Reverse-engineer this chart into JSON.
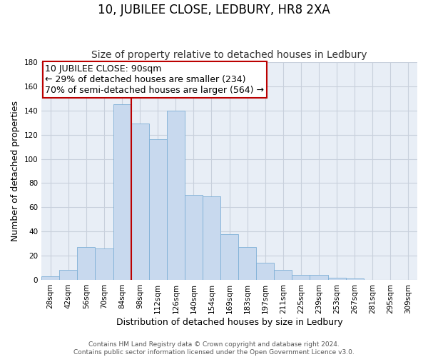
{
  "title": "10, JUBILEE CLOSE, LEDBURY, HR8 2XA",
  "subtitle": "Size of property relative to detached houses in Ledbury",
  "xlabel": "Distribution of detached houses by size in Ledbury",
  "ylabel": "Number of detached properties",
  "categories": [
    "28sqm",
    "42sqm",
    "56sqm",
    "70sqm",
    "84sqm",
    "98sqm",
    "112sqm",
    "126sqm",
    "140sqm",
    "154sqm",
    "169sqm",
    "183sqm",
    "197sqm",
    "211sqm",
    "225sqm",
    "239sqm",
    "253sqm",
    "267sqm",
    "281sqm",
    "295sqm",
    "309sqm"
  ],
  "values": [
    3,
    8,
    27,
    26,
    145,
    129,
    116,
    140,
    70,
    69,
    38,
    27,
    14,
    8,
    4,
    4,
    2,
    1,
    0,
    0,
    0
  ],
  "bar_color": "#c8d9ee",
  "bar_edge_color": "#7eafd6",
  "bar_width": 1.0,
  "ylim": [
    0,
    180
  ],
  "yticks": [
    0,
    20,
    40,
    60,
    80,
    100,
    120,
    140,
    160,
    180
  ],
  "vline_x": 90,
  "vline_color": "#bb0000",
  "annotation_title": "10 JUBILEE CLOSE: 90sqm",
  "annotation_line1": "← 29% of detached houses are smaller (234)",
  "annotation_line2": "70% of semi-detached houses are larger (564) →",
  "annotation_box_color": "#ffffff",
  "annotation_box_edge_color": "#bb0000",
  "footer_line1": "Contains HM Land Registry data © Crown copyright and database right 2024.",
  "footer_line2": "Contains public sector information licensed under the Open Government Licence v3.0.",
  "background_color": "#ffffff",
  "plot_bg_color": "#e8eef6",
  "grid_color": "#c8d0dc",
  "title_fontsize": 12,
  "subtitle_fontsize": 10,
  "axis_label_fontsize": 9,
  "tick_fontsize": 7.5,
  "annotation_fontsize": 9,
  "footer_fontsize": 6.5
}
